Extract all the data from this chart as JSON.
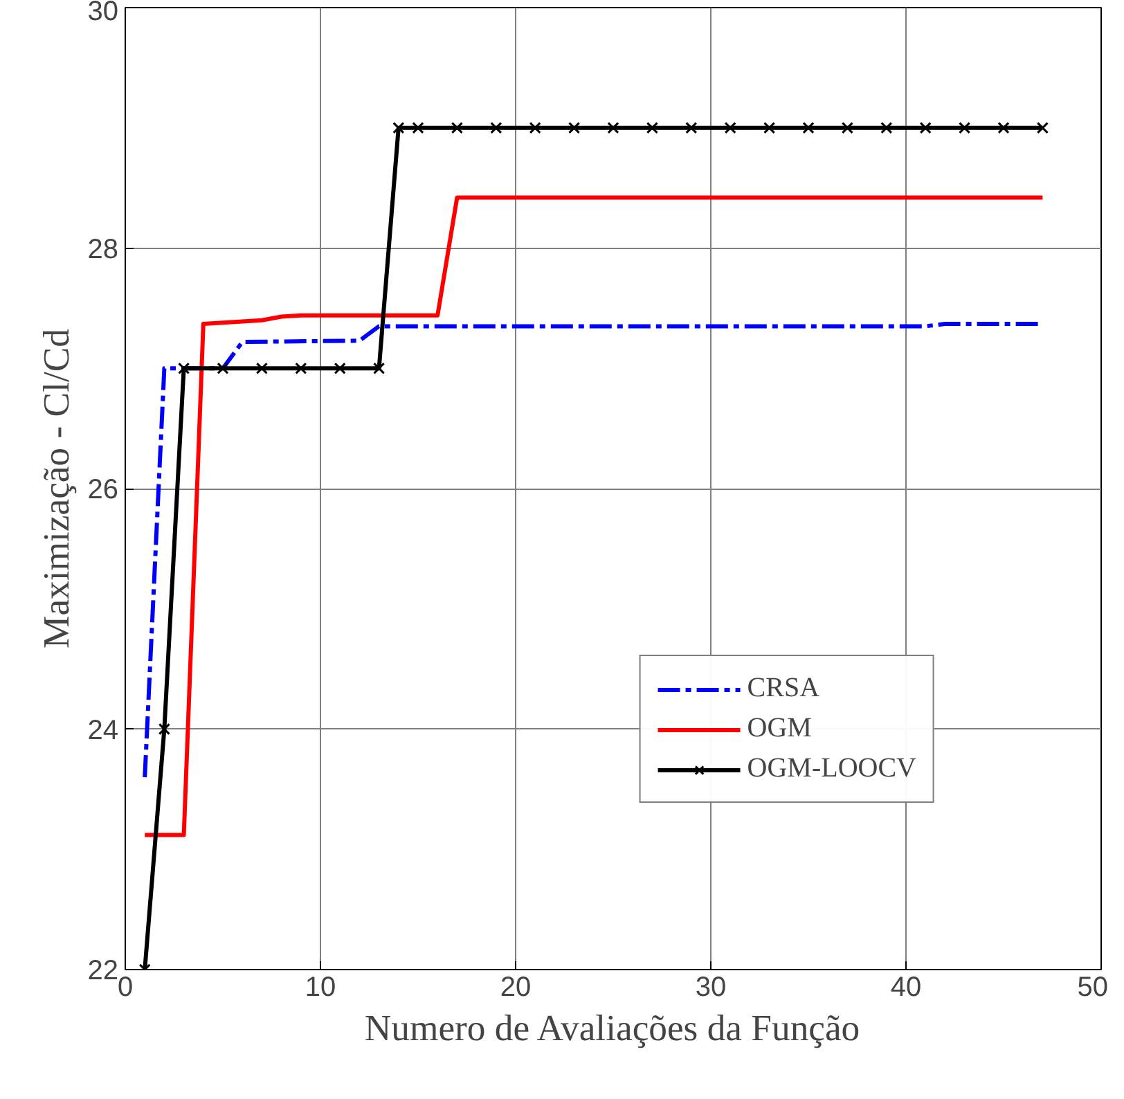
{
  "chart_data": {
    "type": "line",
    "xlabel": "Numero de Avaliações da Função",
    "ylabel": "Maximização - Cl/Cd",
    "xlim": [
      0,
      50
    ],
    "ylim": [
      22,
      30
    ],
    "xticks": [
      0,
      10,
      20,
      30,
      40,
      50
    ],
    "yticks": [
      22,
      24,
      26,
      28,
      30
    ],
    "grid": true,
    "legend": "bottom right",
    "series": [
      {
        "name": "CRSA",
        "color": "#0000ff",
        "line_style": "dashdot",
        "marker": "none",
        "x": [
          1,
          2,
          5,
          6,
          12,
          13,
          17,
          41,
          42,
          47
        ],
        "values": [
          23.6,
          27.0,
          27.0,
          27.22,
          27.23,
          27.35,
          27.35,
          27.35,
          27.37,
          27.37
        ]
      },
      {
        "name": "OGM",
        "color": "#ff0000",
        "line_style": "solid",
        "marker": "none",
        "x": [
          1,
          3,
          4,
          5,
          7,
          8,
          9,
          16,
          17,
          47
        ],
        "values": [
          23.12,
          23.12,
          27.37,
          27.38,
          27.4,
          27.43,
          27.44,
          27.44,
          28.42,
          28.42
        ]
      },
      {
        "name": "OGM-LOOCV",
        "color": "#000000",
        "line_style": "solid",
        "marker": "cross",
        "x": [
          1,
          2,
          3,
          5,
          7,
          9,
          11,
          13,
          14,
          15,
          17,
          19,
          21,
          23,
          25,
          27,
          29,
          31,
          33,
          35,
          37,
          39,
          41,
          43,
          45,
          47
        ],
        "values": [
          22,
          24,
          27,
          27,
          27,
          27,
          27,
          27,
          29,
          29,
          29,
          29,
          29,
          29,
          29,
          29,
          29,
          29,
          29,
          29,
          29,
          29,
          29,
          29,
          29,
          29
        ]
      }
    ]
  }
}
